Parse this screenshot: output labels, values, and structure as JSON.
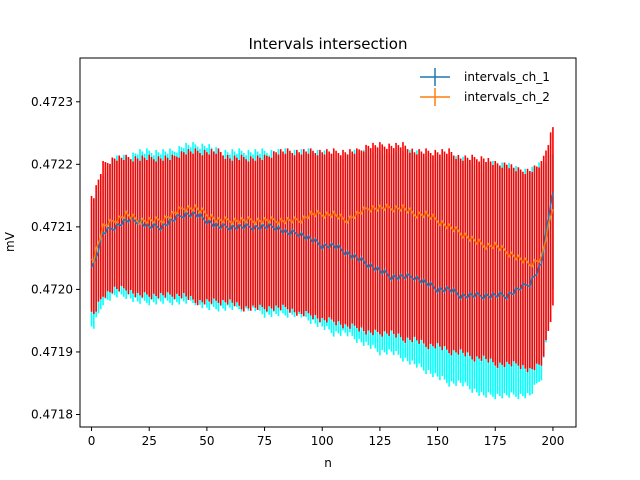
{
  "chart_data": {
    "type": "line",
    "title": "Intervals intersection",
    "xlabel": "n",
    "ylabel": "mV",
    "xlim": [
      -5,
      210
    ],
    "ylim": [
      0.47178,
      0.47237
    ],
    "x_ticks": [
      0,
      25,
      50,
      75,
      100,
      125,
      150,
      175,
      200
    ],
    "x_tick_labels": [
      "0",
      "25",
      "50",
      "75",
      "100",
      "125",
      "150",
      "175",
      "200"
    ],
    "y_ticks": [
      0.4718,
      0.4719,
      0.472,
      0.4721,
      0.4722,
      0.4723
    ],
    "y_tick_labels": [
      "0.4718",
      "0.4719",
      "0.4720",
      "0.4721",
      "0.4722",
      "0.4723"
    ],
    "legend_position": "top-right",
    "grid": false,
    "n_points": 201,
    "series": [
      {
        "name": "intervals_ch_1",
        "line_color": "#1f77b4",
        "errorbar_color": "#00ffff",
        "x_knots": [
          1,
          5,
          10,
          15,
          20,
          25,
          30,
          35,
          40,
          45,
          50,
          55,
          60,
          65,
          70,
          75,
          80,
          85,
          90,
          95,
          100,
          105,
          110,
          115,
          120,
          125,
          130,
          135,
          140,
          145,
          150,
          155,
          160,
          165,
          170,
          175,
          180,
          185,
          190,
          195,
          200
        ],
        "center_knots": [
          0.47204,
          0.47209,
          0.4721,
          0.47211,
          0.47211,
          0.4721,
          0.4721,
          0.47211,
          0.47212,
          0.47212,
          0.47211,
          0.4721,
          0.4721,
          0.4721,
          0.4721,
          0.4721,
          0.4721,
          0.47209,
          0.47209,
          0.47208,
          0.47207,
          0.47207,
          0.47206,
          0.47205,
          0.47204,
          0.47203,
          0.47202,
          0.47202,
          0.47202,
          0.47201,
          0.472,
          0.472,
          0.47199,
          0.47199,
          0.47199,
          0.47199,
          0.47199,
          0.472,
          0.47201,
          0.47204,
          0.47216
        ],
        "upper_knots": [
          0.47214,
          0.47218,
          0.47221,
          0.47221,
          0.47222,
          0.47222,
          0.47222,
          0.47222,
          0.47223,
          0.47223,
          0.47223,
          0.47222,
          0.47222,
          0.47222,
          0.47222,
          0.47222,
          0.47222,
          0.47222,
          0.47222,
          0.47222,
          0.47222,
          0.47221,
          0.47221,
          0.47222,
          0.47222,
          0.47222,
          0.47222,
          0.47222,
          0.47222,
          0.47221,
          0.47221,
          0.47221,
          0.47221,
          0.4722,
          0.4722,
          0.4722,
          0.4722,
          0.47219,
          0.47219,
          0.4722,
          0.47222
        ],
        "lower_knots": [
          0.47194,
          0.47198,
          0.47199,
          0.47199,
          0.47198,
          0.47198,
          0.47198,
          0.47198,
          0.47198,
          0.47198,
          0.47197,
          0.47197,
          0.47197,
          0.47197,
          0.47197,
          0.47196,
          0.47196,
          0.47196,
          0.47196,
          0.47195,
          0.47194,
          0.47193,
          0.47193,
          0.47192,
          0.47191,
          0.4719,
          0.4719,
          0.47189,
          0.47188,
          0.47187,
          0.47186,
          0.47185,
          0.47185,
          0.47184,
          0.47183,
          0.47183,
          0.47183,
          0.47183,
          0.47183,
          0.47186,
          0.472
        ]
      },
      {
        "name": "intervals_ch_2",
        "line_color": "#ff7f0e",
        "errorbar_color": "#ff0000",
        "x_knots": [
          1,
          5,
          10,
          15,
          20,
          25,
          30,
          35,
          40,
          45,
          50,
          55,
          60,
          65,
          70,
          75,
          80,
          85,
          90,
          95,
          100,
          105,
          110,
          115,
          120,
          125,
          130,
          135,
          140,
          145,
          150,
          155,
          160,
          165,
          170,
          175,
          180,
          185,
          190,
          195,
          200
        ],
        "center_knots": [
          0.47205,
          0.4721,
          0.47211,
          0.47212,
          0.47211,
          0.47211,
          0.47211,
          0.47212,
          0.47213,
          0.47213,
          0.47212,
          0.47211,
          0.47211,
          0.47211,
          0.47211,
          0.47211,
          0.47211,
          0.47211,
          0.47211,
          0.47212,
          0.47212,
          0.47212,
          0.47211,
          0.47212,
          0.47213,
          0.47213,
          0.47213,
          0.47213,
          0.47212,
          0.47212,
          0.47211,
          0.4721,
          0.47209,
          0.47208,
          0.47207,
          0.47207,
          0.47206,
          0.47205,
          0.47204,
          0.47205,
          0.47213
        ],
        "upper_knots": [
          0.47215,
          0.4722,
          0.47221,
          0.47221,
          0.47221,
          0.47221,
          0.47221,
          0.47221,
          0.47222,
          0.47222,
          0.47222,
          0.47222,
          0.47221,
          0.47221,
          0.47221,
          0.47221,
          0.47222,
          0.47222,
          0.47222,
          0.47222,
          0.47222,
          0.47222,
          0.47222,
          0.47222,
          0.47223,
          0.47223,
          0.47223,
          0.47223,
          0.47222,
          0.47222,
          0.47222,
          0.47222,
          0.47221,
          0.47221,
          0.47221,
          0.4722,
          0.4722,
          0.47219,
          0.47219,
          0.4722,
          0.47226
        ],
        "lower_knots": [
          0.47196,
          0.47199,
          0.472,
          0.472,
          0.47199,
          0.47199,
          0.47199,
          0.47199,
          0.47199,
          0.47198,
          0.47198,
          0.47198,
          0.47198,
          0.47197,
          0.47197,
          0.47197,
          0.47197,
          0.47197,
          0.47196,
          0.47196,
          0.47195,
          0.47195,
          0.47194,
          0.47194,
          0.47193,
          0.47193,
          0.47193,
          0.47192,
          0.47192,
          0.47191,
          0.47191,
          0.4719,
          0.4719,
          0.47189,
          0.47189,
          0.47188,
          0.47188,
          0.47188,
          0.47187,
          0.47188,
          0.47197
        ]
      }
    ]
  }
}
